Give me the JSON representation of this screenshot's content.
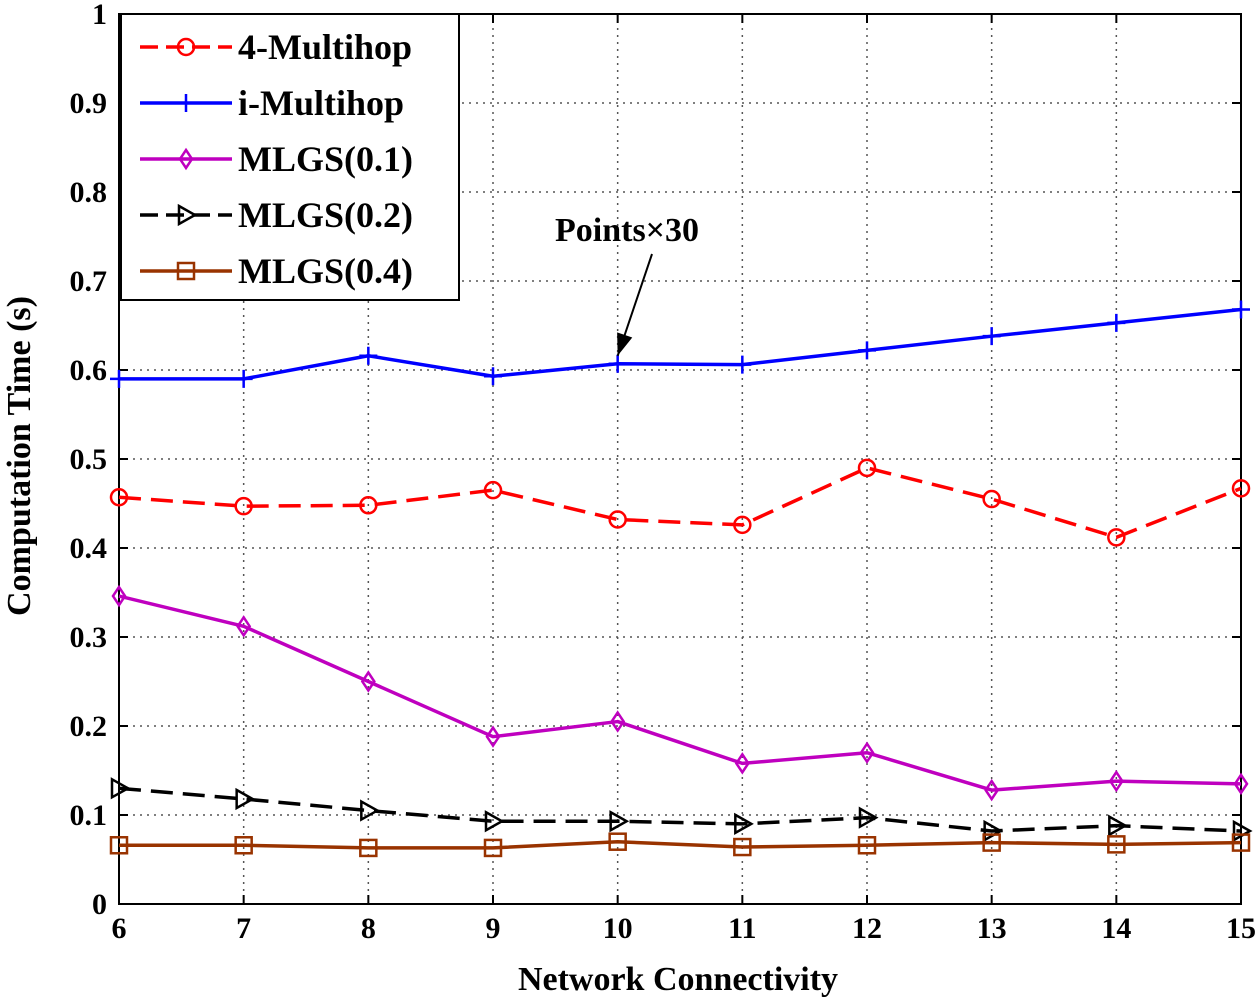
{
  "chart_data": {
    "type": "line",
    "title": "",
    "xlabel": "Network Connectivity",
    "ylabel": "Computation Time (s)",
    "x": [
      6,
      7,
      8,
      9,
      10,
      11,
      12,
      13,
      14,
      15
    ],
    "xlim": [
      6,
      15
    ],
    "ylim": [
      0,
      1
    ],
    "x_ticks": [
      "6",
      "7",
      "8",
      "9",
      "10",
      "11",
      "12",
      "13",
      "14",
      "15"
    ],
    "y_ticks": [
      "0",
      "0.1",
      "0.2",
      "0.3",
      "0.4",
      "0.5",
      "0.6",
      "0.7",
      "0.8",
      "0.9",
      "1"
    ],
    "grid": true,
    "legend_position": "top-left",
    "series": [
      {
        "name": "4-Multihop",
        "color": "#ff0000",
        "dash": "dashed",
        "marker": "circle",
        "values": [
          0.457,
          0.447,
          0.448,
          0.465,
          0.432,
          0.426,
          0.49,
          0.455,
          0.412,
          0.467
        ]
      },
      {
        "name": "i-Multihop",
        "color": "#0000ff",
        "dash": "solid",
        "marker": "plus",
        "values": [
          0.59,
          0.59,
          0.616,
          0.593,
          0.607,
          0.606,
          0.622,
          0.638,
          0.653,
          0.668
        ]
      },
      {
        "name": "MLGS(0.1)",
        "color": "#bf00bf",
        "dash": "solid",
        "marker": "diamond",
        "values": [
          0.346,
          0.312,
          0.25,
          0.188,
          0.205,
          0.158,
          0.17,
          0.128,
          0.138,
          0.135
        ]
      },
      {
        "name": "MLGS(0.2)",
        "color": "#000000",
        "dash": "dashed",
        "marker": "triangle-right",
        "values": [
          0.13,
          0.118,
          0.105,
          0.093,
          0.093,
          0.09,
          0.097,
          0.082,
          0.088,
          0.082
        ]
      },
      {
        "name": "MLGS(0.4)",
        "color": "#993300",
        "dash": "solid",
        "marker": "square",
        "values": [
          0.066,
          0.066,
          0.063,
          0.063,
          0.07,
          0.064,
          0.066,
          0.069,
          0.067,
          0.069
        ]
      }
    ],
    "annotation": {
      "text": "Points×30",
      "target_x": 10,
      "target_y": 0.607
    }
  }
}
